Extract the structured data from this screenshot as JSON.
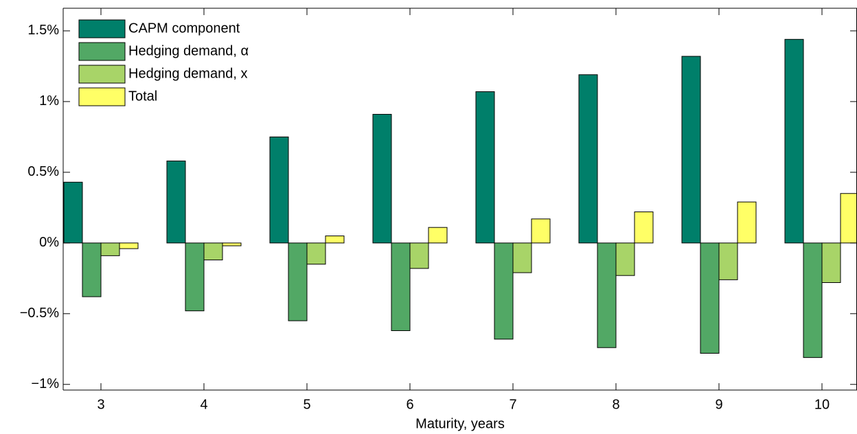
{
  "chart_data": {
    "type": "bar",
    "x_label": "Maturity, years",
    "categories": [
      "3",
      "4",
      "5",
      "6",
      "7",
      "8",
      "9",
      "10"
    ],
    "series": [
      {
        "name": "CAPM component",
        "color": "#007f6a",
        "values": [
          0.43,
          0.58,
          0.75,
          0.91,
          1.07,
          1.19,
          1.32,
          1.44
        ]
      },
      {
        "name": "Hedging demand, α",
        "color": "#52a865",
        "values": [
          -0.38,
          -0.48,
          -0.55,
          -0.62,
          -0.68,
          -0.74,
          -0.78,
          -0.81
        ]
      },
      {
        "name": "Hedging demand, x",
        "color": "#a8d468",
        "values": [
          -0.09,
          -0.12,
          -0.15,
          -0.18,
          -0.21,
          -0.23,
          -0.26,
          -0.28
        ]
      },
      {
        "name": "Total",
        "color": "#ffff66",
        "values": [
          -0.04,
          -0.02,
          0.05,
          0.11,
          0.17,
          0.22,
          0.29,
          0.35
        ]
      }
    ],
    "ylim": [
      -1.04,
      1.66
    ],
    "yticks": [
      {
        "value": -1,
        "label": "−1%"
      },
      {
        "value": -0.5,
        "label": "−0.5%"
      },
      {
        "value": 0,
        "label": "0%"
      },
      {
        "value": 0.5,
        "label": "0.5%"
      },
      {
        "value": 1,
        "label": "1%"
      },
      {
        "value": 1.5,
        "label": "1.5%"
      }
    ],
    "legend": "upper left"
  }
}
